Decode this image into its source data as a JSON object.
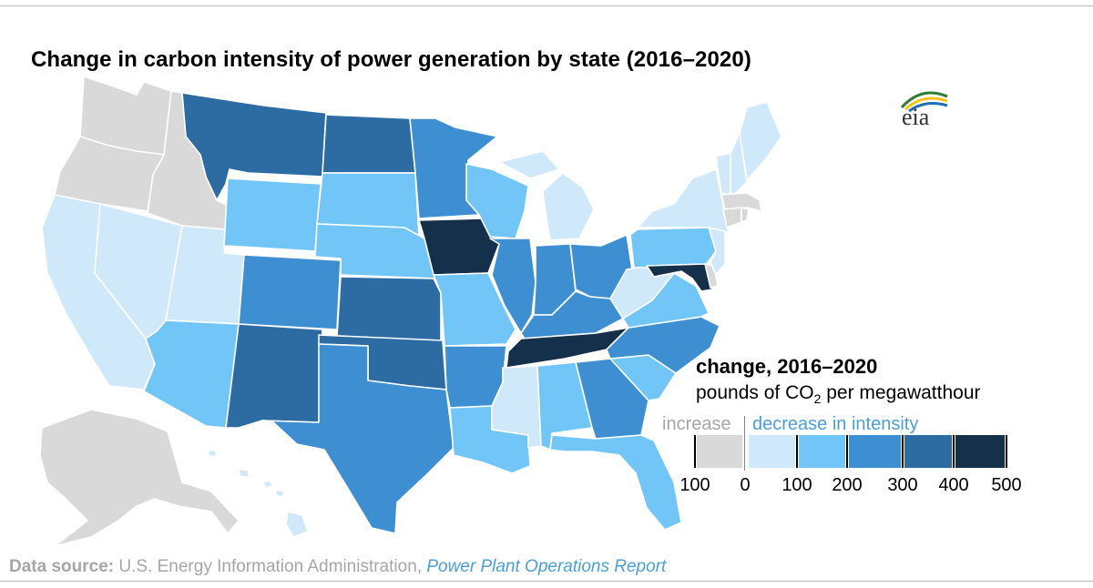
{
  "title": "Change in carbon intensity of power generation by state (2016–2020)",
  "logo": {
    "text": "eia",
    "colors": [
      "#2e7d32",
      "#f6c21a",
      "#1f6fb6"
    ]
  },
  "legend": {
    "title": "change, 2016–2020",
    "subtitle_prefix": "pounds of CO",
    "subtitle_sub": "2",
    "subtitle_suffix": " per megawatthour",
    "increase_label": "increase",
    "decrease_label": "decrease in intensity",
    "bins": [
      {
        "label": "increase 0–100",
        "color": "#d9d9d9"
      },
      {
        "label": "decrease 0–100",
        "color": "#cfe9fb"
      },
      {
        "label": "decrease 100–200",
        "color": "#72c6f7"
      },
      {
        "label": "decrease 200–300",
        "color": "#3d8fd1"
      },
      {
        "label": "decrease 300–400",
        "color": "#2c6ca2"
      },
      {
        "label": "decrease 400–500",
        "color": "#15304b"
      }
    ],
    "ticks": [
      "100",
      "0",
      "100",
      "200",
      "300",
      "400",
      "500"
    ]
  },
  "source": {
    "label": "Data source:",
    "text": " U.S. Energy Information Administration, ",
    "report": "Power Plant Operations Report"
  },
  "states": [
    {
      "name": "WA",
      "color": "#d9d9d9"
    },
    {
      "name": "OR",
      "color": "#d9d9d9"
    },
    {
      "name": "ID",
      "color": "#d9d9d9"
    },
    {
      "name": "CA",
      "color": "#cfe9fb"
    },
    {
      "name": "NV",
      "color": "#cfe9fb"
    },
    {
      "name": "UT",
      "color": "#cfe9fb"
    },
    {
      "name": "AZ",
      "color": "#72c6f7"
    },
    {
      "name": "MT",
      "color": "#2c6ca2"
    },
    {
      "name": "WY",
      "color": "#72c6f7"
    },
    {
      "name": "CO",
      "color": "#3d8fd1"
    },
    {
      "name": "NM",
      "color": "#2c6ca2"
    },
    {
      "name": "ND",
      "color": "#2c6ca2"
    },
    {
      "name": "SD",
      "color": "#72c6f7"
    },
    {
      "name": "NE",
      "color": "#72c6f7"
    },
    {
      "name": "KS",
      "color": "#2c6ca2"
    },
    {
      "name": "OK",
      "color": "#2c6ca2"
    },
    {
      "name": "TX",
      "color": "#3d8fd1"
    },
    {
      "name": "MN",
      "color": "#3d8fd1"
    },
    {
      "name": "IA",
      "color": "#15304b"
    },
    {
      "name": "MO",
      "color": "#72c6f7"
    },
    {
      "name": "AR",
      "color": "#3d8fd1"
    },
    {
      "name": "LA",
      "color": "#72c6f7"
    },
    {
      "name": "WI",
      "color": "#72c6f7"
    },
    {
      "name": "IL",
      "color": "#3d8fd1"
    },
    {
      "name": "MI",
      "color": "#cfe9fb"
    },
    {
      "name": "IN",
      "color": "#3d8fd1"
    },
    {
      "name": "OH",
      "color": "#3d8fd1"
    },
    {
      "name": "KY",
      "color": "#3d8fd1"
    },
    {
      "name": "TN",
      "color": "#15304b"
    },
    {
      "name": "MS",
      "color": "#cfe9fb"
    },
    {
      "name": "AL",
      "color": "#72c6f7"
    },
    {
      "name": "GA",
      "color": "#3d8fd1"
    },
    {
      "name": "FL",
      "color": "#72c6f7"
    },
    {
      "name": "SC",
      "color": "#72c6f7"
    },
    {
      "name": "NC",
      "color": "#3d8fd1"
    },
    {
      "name": "VA",
      "color": "#72c6f7"
    },
    {
      "name": "WV",
      "color": "#cfe9fb"
    },
    {
      "name": "PA",
      "color": "#72c6f7"
    },
    {
      "name": "NY",
      "color": "#cfe9fb"
    },
    {
      "name": "NJ",
      "color": "#cfe9fb"
    },
    {
      "name": "MD",
      "color": "#15304b"
    },
    {
      "name": "DE",
      "color": "#d9d9d9"
    },
    {
      "name": "VT",
      "color": "#cfe9fb"
    },
    {
      "name": "NH",
      "color": "#cfe9fb"
    },
    {
      "name": "ME",
      "color": "#cfe9fb"
    },
    {
      "name": "MA",
      "color": "#d9d9d9"
    },
    {
      "name": "CT",
      "color": "#d9d9d9"
    },
    {
      "name": "RI",
      "color": "#d9d9d9"
    },
    {
      "name": "AK",
      "color": "#d9d9d9"
    },
    {
      "name": "HI",
      "color": "#cfe9fb"
    }
  ]
}
